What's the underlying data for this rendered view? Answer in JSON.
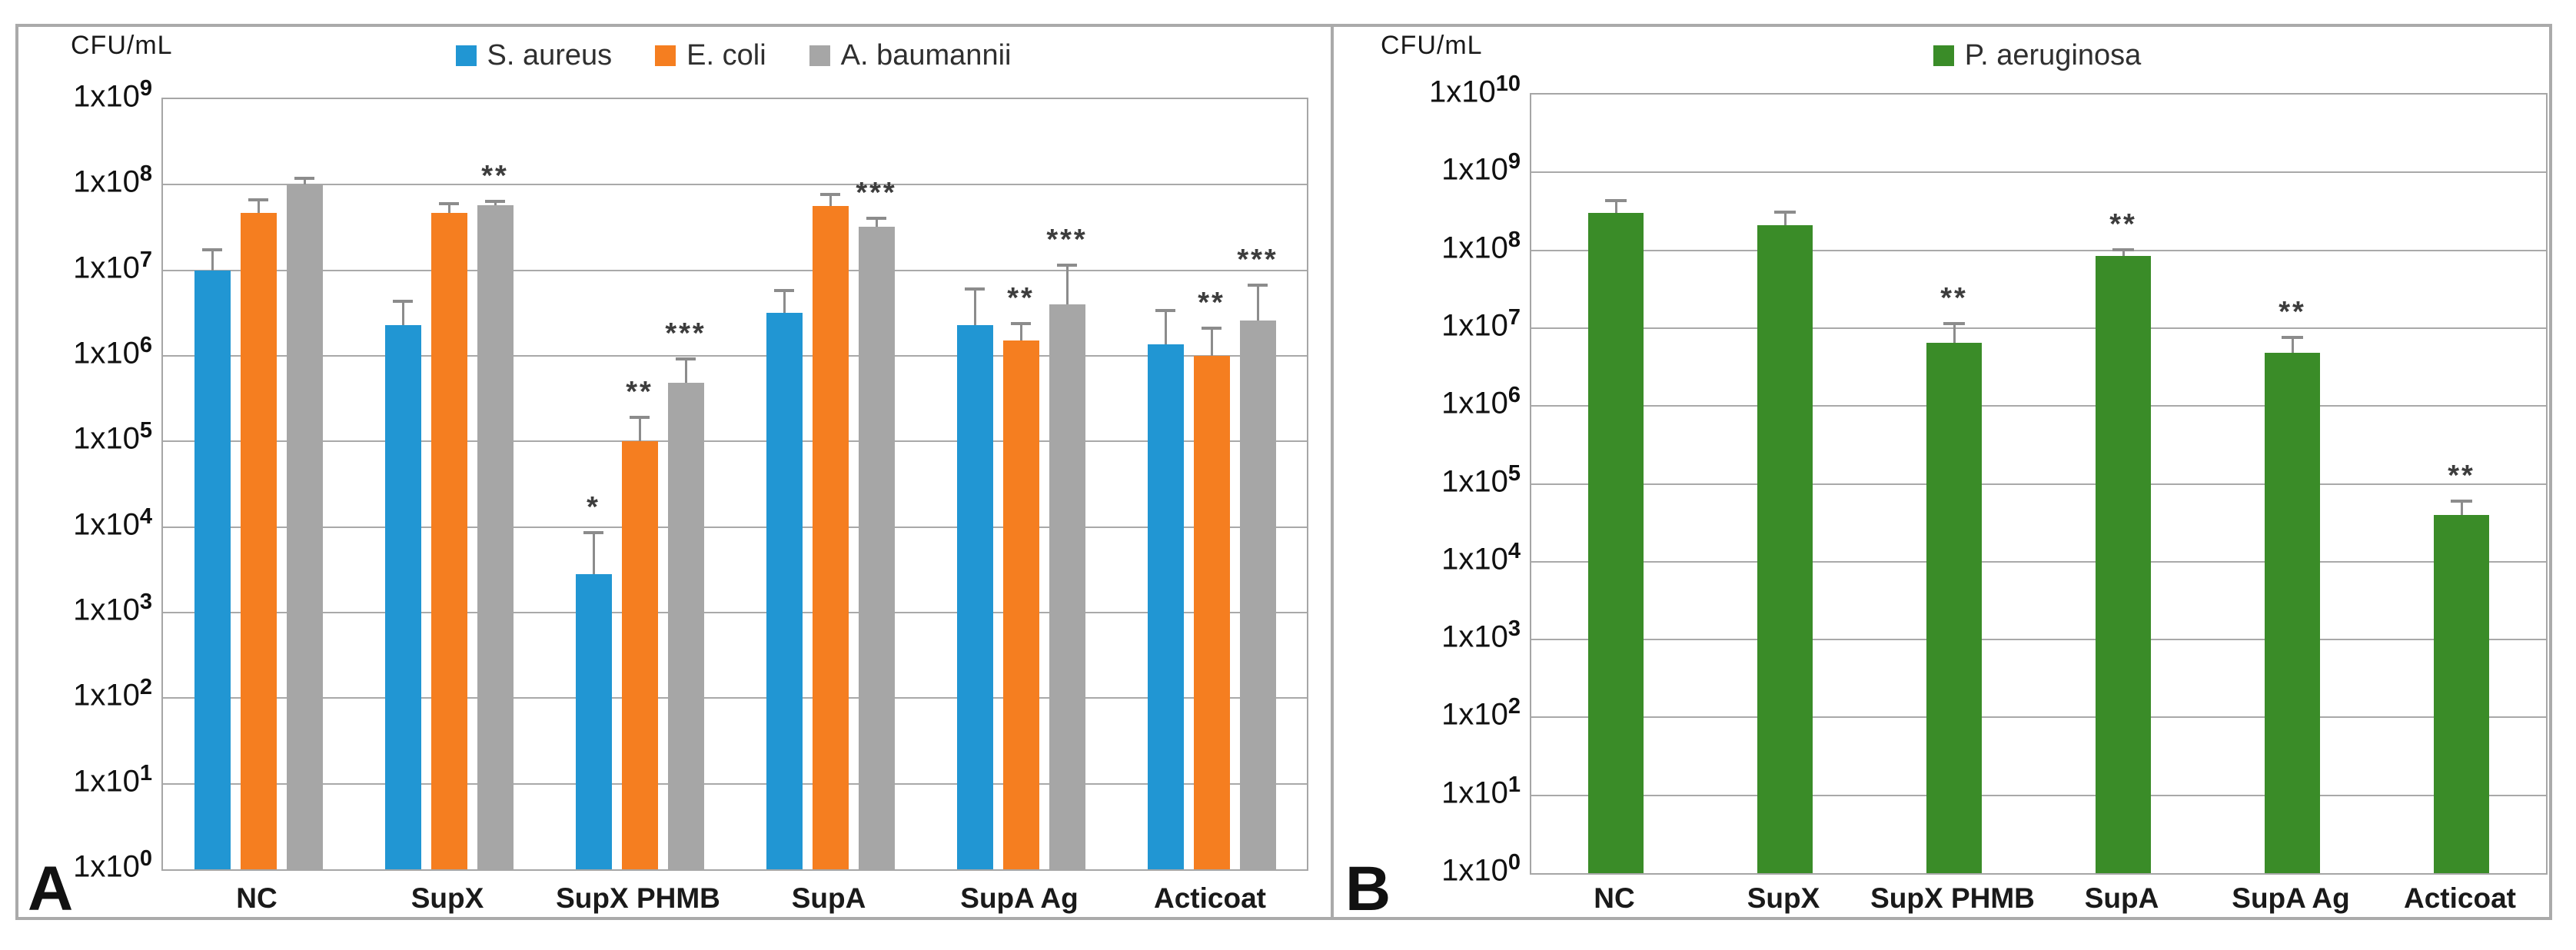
{
  "figure": {
    "background": "#ffffff",
    "frame_color": "#aaaaaa",
    "grid_color": "#a9a9a9",
    "error_bar_color": "#8c8c8c"
  },
  "chart_data": [
    {
      "id": "A",
      "panel_label": "A",
      "type": "bar",
      "log_scale": true,
      "ylabel": "CFU/mL",
      "legend_position": "top",
      "grid": true,
      "y_axis": {
        "min_exp": 0,
        "max_exp": 9,
        "tick_prefix": "1x10"
      },
      "categories": [
        "NC",
        "SupX",
        "SupX PHMB",
        "SupA",
        "SupA Ag",
        "Acticoat"
      ],
      "series": [
        {
          "name": "S. aureus",
          "color": "#2196d3",
          "values": [
            10000000.0,
            2300000.0,
            2800.0,
            3200000.0,
            2300000.0,
            1350000.0
          ],
          "error_tops": [
            18000000.0,
            4500000.0,
            9000.0,
            6000000.0,
            6300000.0,
            3500000.0
          ],
          "significance": [
            "",
            "",
            "*",
            "",
            "",
            ""
          ]
        },
        {
          "name": "E. coli",
          "color": "#f57e20",
          "values": [
            47000000.0,
            47000000.0,
            100000.0,
            56000000.0,
            1500000.0,
            1000000.0
          ],
          "error_tops": [
            70000000.0,
            63000000.0,
            200000.0,
            80000000.0,
            2500000.0,
            2200000.0
          ],
          "significance": [
            "",
            "",
            "**",
            "",
            "**",
            "**"
          ]
        },
        {
          "name": "A. baumannii",
          "color": "#a6a6a6",
          "values": [
            100000000.0,
            58000000.0,
            480000.0,
            32000000.0,
            4000000.0,
            2600000.0
          ],
          "error_tops": [
            125000000.0,
            66000000.0,
            950000.0,
            42000000.0,
            12000000.0,
            7000000.0
          ],
          "significance": [
            "",
            "**",
            "***",
            "***",
            "***",
            "***"
          ]
        }
      ]
    },
    {
      "id": "B",
      "panel_label": "B",
      "type": "bar",
      "log_scale": true,
      "ylabel": "CFU/mL",
      "legend_position": "top",
      "grid": true,
      "y_axis": {
        "min_exp": 0,
        "max_exp": 10,
        "tick_prefix": "1x10"
      },
      "categories": [
        "NC",
        "SupX",
        "SupX PHMB",
        "SupA",
        "SupA Ag",
        "Acticoat"
      ],
      "series": [
        {
          "name": "P. aeruginosa",
          "color": "#3a8c28",
          "values": [
            300000000.0,
            210000000.0,
            6500000.0,
            85000000.0,
            4800000.0,
            40000.0
          ],
          "error_tops": [
            450000000.0,
            320000000.0,
            12000000.0,
            105000000.0,
            8000000.0,
            63000.0
          ],
          "significance": [
            "",
            "",
            "**",
            "**",
            "**",
            "**"
          ]
        }
      ]
    }
  ]
}
